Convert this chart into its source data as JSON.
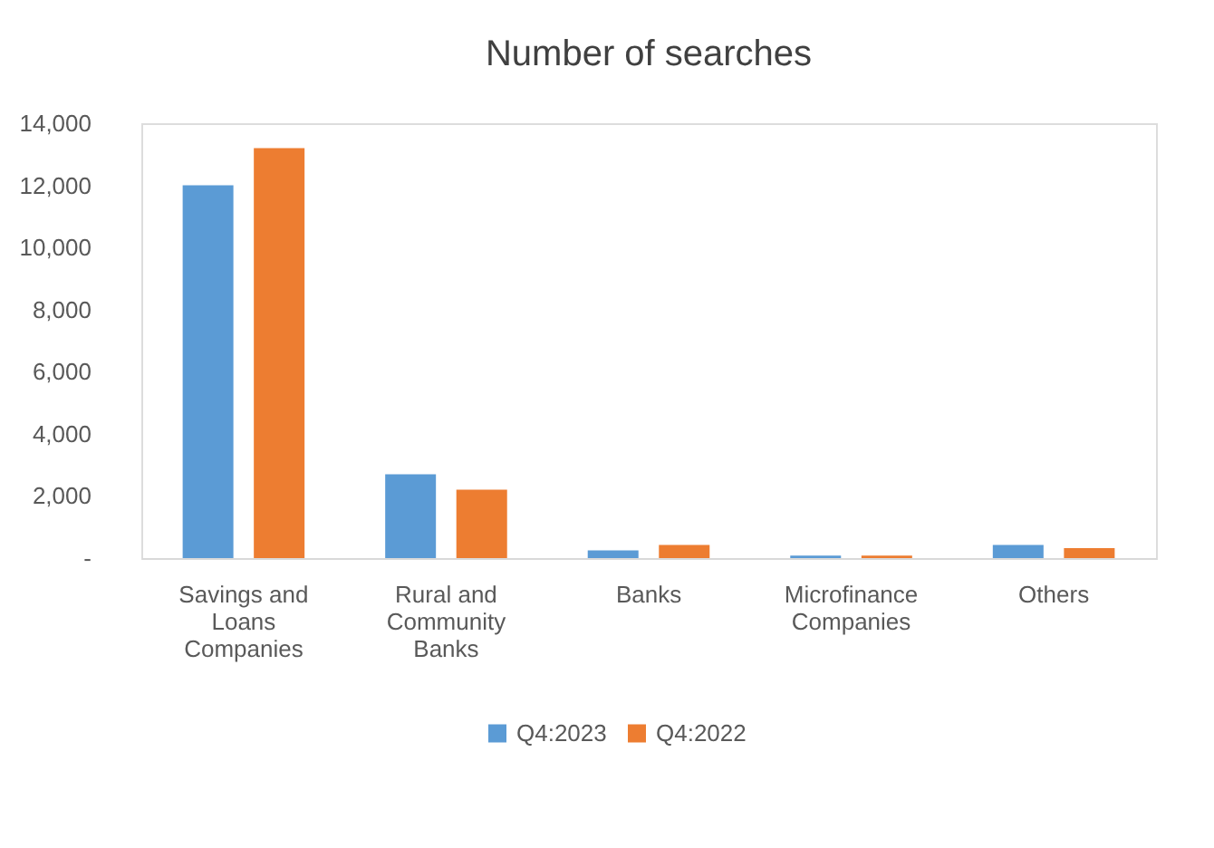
{
  "chart_data": {
    "type": "bar",
    "title": "Number of searches",
    "categories": [
      "Savings and Loans Companies",
      "Rural and Community Banks",
      "Banks",
      "Microfinance Companies",
      "Others"
    ],
    "series": [
      {
        "name": "Q4:2023",
        "color": "#5b9bd5",
        "values": [
          12000,
          2700,
          250,
          80,
          420
        ]
      },
      {
        "name": "Q4:2022",
        "color": "#ed7d31",
        "values": [
          13200,
          2200,
          420,
          80,
          320
        ]
      }
    ],
    "ylim": [
      0,
      14000
    ],
    "yticks": [
      {
        "value": 0,
        "label": "-"
      },
      {
        "value": 2000,
        "label": "2,000"
      },
      {
        "value": 4000,
        "label": "4,000"
      },
      {
        "value": 6000,
        "label": "6,000"
      },
      {
        "value": 8000,
        "label": "8,000"
      },
      {
        "value": 10000,
        "label": "10,000"
      },
      {
        "value": 12000,
        "label": "12,000"
      },
      {
        "value": 14000,
        "label": "14,000"
      }
    ],
    "grid": false,
    "legend": "bottom"
  }
}
